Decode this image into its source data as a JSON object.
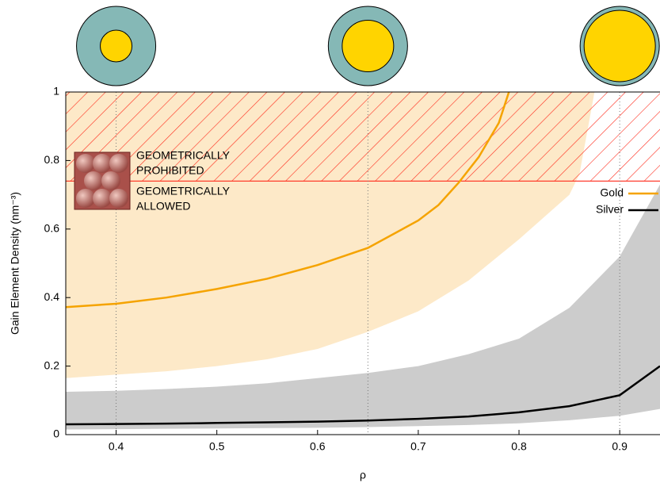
{
  "chart_data": {
    "type": "line",
    "ylabel": "Gain Element Density (nm⁻³)",
    "xlabel": "ρ",
    "xlim": [
      0.35,
      0.94
    ],
    "ylim": [
      0,
      1
    ],
    "xticks": [
      0.4,
      0.5,
      0.6,
      0.7,
      0.8,
      0.9
    ],
    "yticks": [
      0,
      0.2,
      0.4,
      0.6,
      0.8,
      1
    ],
    "threshold": 0.74,
    "threshold_color": "#ff2a1a",
    "markers": [
      0.4,
      0.65,
      0.9
    ],
    "legend": "right",
    "annotations": [
      {
        "lines": [
          "GEOMETRICALLY",
          "PROHIBITED"
        ]
      },
      {
        "lines": [
          "GEOMETRICALLY",
          "ALLOWED"
        ]
      }
    ],
    "bands": [
      {
        "color": "#cccccc",
        "x": [
          0.35,
          0.4,
          0.45,
          0.5,
          0.55,
          0.6,
          0.65,
          0.7,
          0.75,
          0.8,
          0.85,
          0.9,
          0.94
        ],
        "lower": [
          0.015,
          0.016,
          0.017,
          0.018,
          0.019,
          0.02,
          0.022,
          0.025,
          0.028,
          0.033,
          0.042,
          0.055,
          0.075
        ],
        "upper": [
          0.125,
          0.128,
          0.133,
          0.14,
          0.15,
          0.165,
          0.18,
          0.2,
          0.235,
          0.28,
          0.37,
          0.52,
          0.73
        ]
      },
      {
        "color": "#fde9c8",
        "x": [
          0.35,
          0.4,
          0.45,
          0.5,
          0.55,
          0.6,
          0.65,
          0.7,
          0.75,
          0.8,
          0.85,
          0.86,
          0.875
        ],
        "lower": [
          0.165,
          0.175,
          0.185,
          0.2,
          0.22,
          0.25,
          0.3,
          0.36,
          0.45,
          0.57,
          0.7,
          0.76,
          1
        ],
        "upper": [
          1,
          1,
          1,
          1,
          1,
          1,
          1,
          1,
          1,
          1,
          1,
          1,
          1
        ]
      }
    ],
    "series": [
      {
        "name": "Gold",
        "color": "#f5a300",
        "x": [
          0.35,
          0.4,
          0.45,
          0.5,
          0.55,
          0.6,
          0.65,
          0.7,
          0.72,
          0.74,
          0.76,
          0.78,
          0.79
        ],
        "values": [
          0.372,
          0.382,
          0.4,
          0.425,
          0.455,
          0.495,
          0.545,
          0.625,
          0.67,
          0.735,
          0.81,
          0.91,
          1
        ]
      },
      {
        "name": "Silver",
        "color": "#000000",
        "x": [
          0.35,
          0.4,
          0.45,
          0.5,
          0.55,
          0.6,
          0.65,
          0.7,
          0.75,
          0.8,
          0.85,
          0.9,
          0.94
        ],
        "values": [
          0.03,
          0.031,
          0.032,
          0.034,
          0.036,
          0.038,
          0.041,
          0.046,
          0.053,
          0.065,
          0.083,
          0.115,
          0.2
        ]
      }
    ]
  }
}
